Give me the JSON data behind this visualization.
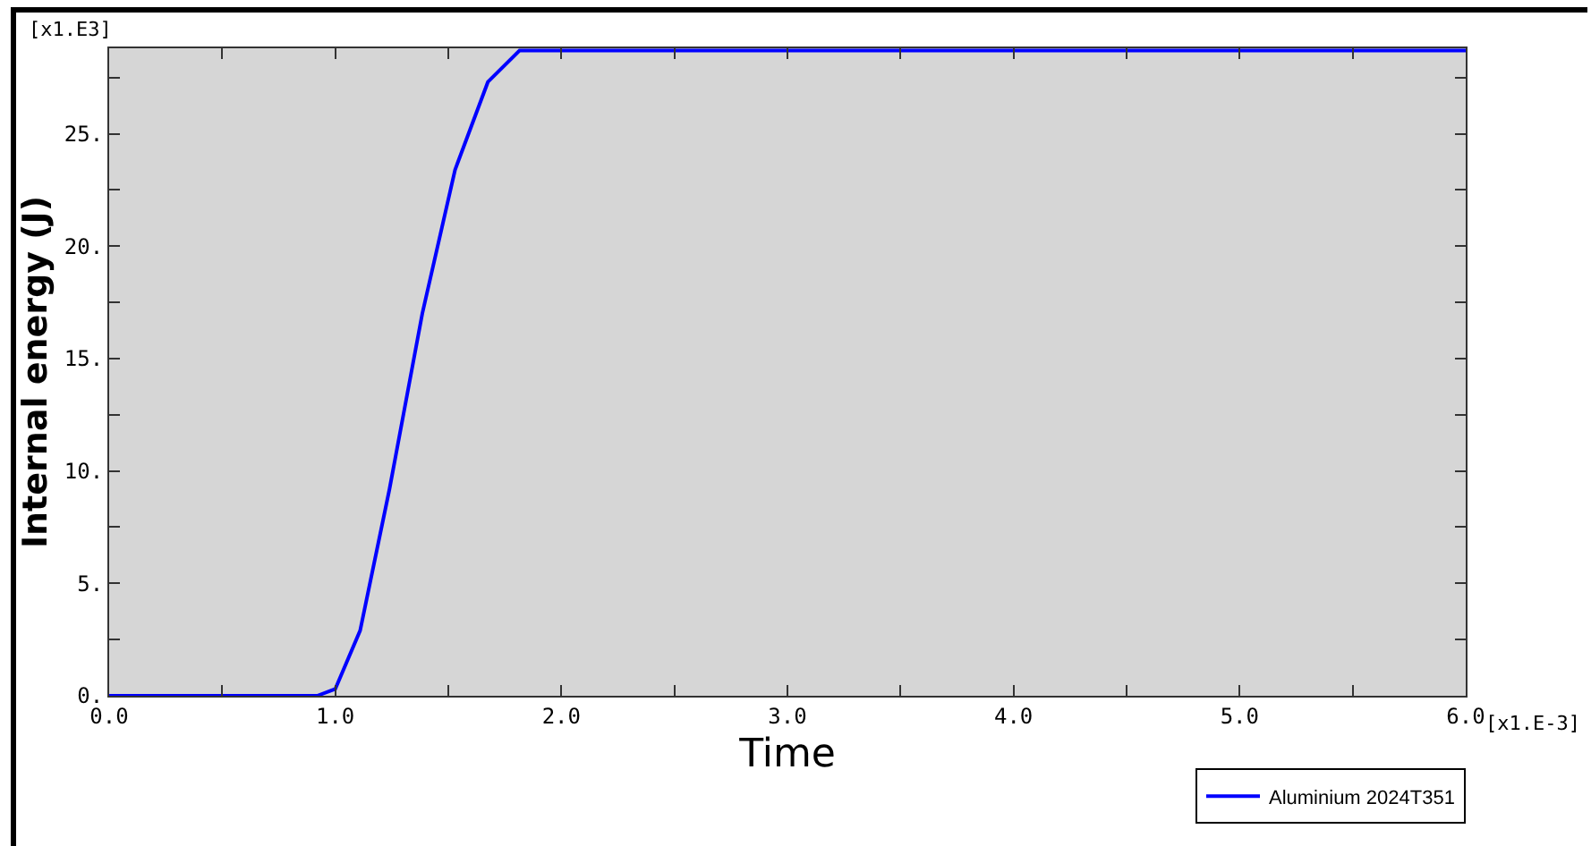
{
  "chart_data": {
    "type": "line",
    "xlabel": "Time",
    "ylabel": "Internal energy (J)",
    "annotations": [
      "[x1.E3]",
      "[x1.E-3]"
    ],
    "x": [
      0,
      0.92,
      1.0,
      1.11,
      1.24,
      1.385,
      1.53,
      1.675,
      1.815,
      6.0
    ],
    "series": [
      {
        "name": "Aluminium 2024T351",
        "color": "#0000ff",
        "values": [
          0,
          0,
          0.3,
          2.9,
          9.2,
          17.0,
          23.4,
          27.3,
          28.7,
          28.7
        ]
      }
    ],
    "xlim": [
      0,
      6
    ],
    "ylim": [
      0,
      28.8
    ],
    "xticks": [
      {
        "value": 0,
        "label": "0.0"
      },
      {
        "value": 0.5,
        "label": null
      },
      {
        "value": 1,
        "label": "1.0"
      },
      {
        "value": 1.5,
        "label": null
      },
      {
        "value": 2,
        "label": "2.0"
      },
      {
        "value": 2.5,
        "label": null
      },
      {
        "value": 3,
        "label": "3.0"
      },
      {
        "value": 3.5,
        "label": null
      },
      {
        "value": 4,
        "label": "4.0"
      },
      {
        "value": 4.5,
        "label": null
      },
      {
        "value": 5,
        "label": "5.0"
      },
      {
        "value": 5.5,
        "label": null
      },
      {
        "value": 6,
        "label": "6.0"
      }
    ],
    "yticks": [
      {
        "value": 0,
        "label": "0."
      },
      {
        "value": 2.5,
        "label": null
      },
      {
        "value": 5,
        "label": "5."
      },
      {
        "value": 7.5,
        "label": null
      },
      {
        "value": 10,
        "label": "10."
      },
      {
        "value": 12.5,
        "label": null
      },
      {
        "value": 15,
        "label": "15."
      },
      {
        "value": 17.5,
        "label": null
      },
      {
        "value": 20,
        "label": "20."
      },
      {
        "value": 22.5,
        "label": null
      },
      {
        "value": 25,
        "label": "25."
      },
      {
        "value": 27.5,
        "label": null
      }
    ],
    "grid": false,
    "legend": "bottom right",
    "marker": "none",
    "line_style": "solid"
  }
}
